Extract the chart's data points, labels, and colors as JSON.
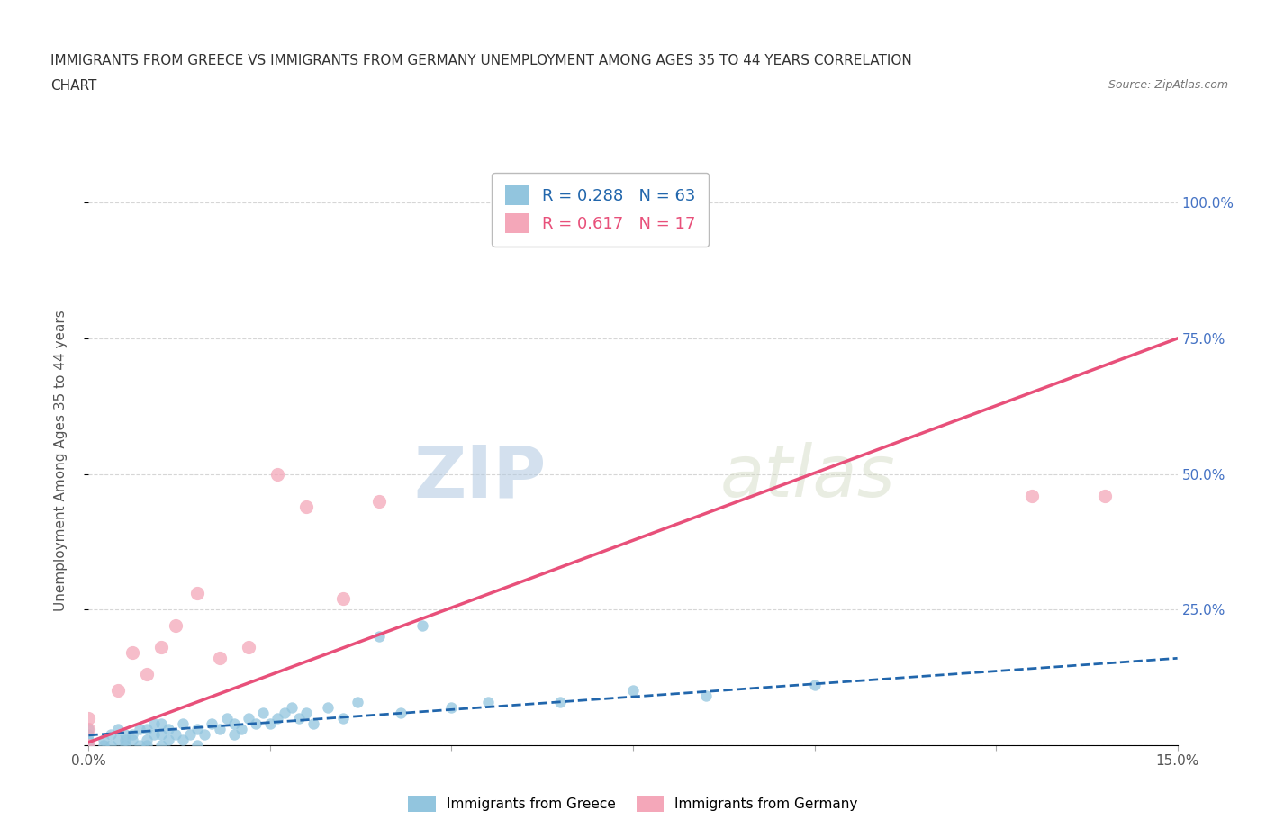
{
  "title_line1": "IMMIGRANTS FROM GREECE VS IMMIGRANTS FROM GERMANY UNEMPLOYMENT AMONG AGES 35 TO 44 YEARS CORRELATION",
  "title_line2": "CHART",
  "source_text": "Source: ZipAtlas.com",
  "ylabel": "Unemployment Among Ages 35 to 44 years",
  "xlim": [
    0.0,
    0.15
  ],
  "ylim": [
    0.0,
    1.05
  ],
  "ytick_positions": [
    0.0,
    0.25,
    0.5,
    0.75,
    1.0
  ],
  "ytick_labels": [
    "",
    "25.0%",
    "50.0%",
    "75.0%",
    "100.0%"
  ],
  "greece_R": 0.288,
  "greece_N": 63,
  "germany_R": 0.617,
  "germany_N": 17,
  "greece_color": "#92c5de",
  "germany_color": "#f4a7b9",
  "greece_line_color": "#2166ac",
  "germany_line_color": "#e8507a",
  "watermark_zip": "ZIP",
  "watermark_atlas": "atlas",
  "greece_scatter_x": [
    0.0,
    0.0,
    0.0,
    0.0,
    0.0,
    0.002,
    0.002,
    0.003,
    0.003,
    0.004,
    0.004,
    0.005,
    0.005,
    0.005,
    0.006,
    0.006,
    0.007,
    0.007,
    0.008,
    0.008,
    0.008,
    0.009,
    0.009,
    0.01,
    0.01,
    0.01,
    0.011,
    0.011,
    0.012,
    0.013,
    0.013,
    0.014,
    0.015,
    0.015,
    0.016,
    0.017,
    0.018,
    0.019,
    0.02,
    0.02,
    0.021,
    0.022,
    0.023,
    0.024,
    0.025,
    0.026,
    0.027,
    0.028,
    0.029,
    0.03,
    0.031,
    0.033,
    0.035,
    0.037,
    0.04,
    0.043,
    0.046,
    0.05,
    0.055,
    0.065,
    0.075,
    0.085,
    0.1
  ],
  "greece_scatter_y": [
    0.0,
    0.0,
    0.01,
    0.02,
    0.03,
    0.0,
    0.01,
    0.0,
    0.02,
    0.01,
    0.03,
    0.0,
    0.01,
    0.02,
    0.01,
    0.02,
    0.0,
    0.03,
    0.0,
    0.01,
    0.03,
    0.02,
    0.04,
    0.0,
    0.02,
    0.04,
    0.01,
    0.03,
    0.02,
    0.01,
    0.04,
    0.02,
    0.0,
    0.03,
    0.02,
    0.04,
    0.03,
    0.05,
    0.02,
    0.04,
    0.03,
    0.05,
    0.04,
    0.06,
    0.04,
    0.05,
    0.06,
    0.07,
    0.05,
    0.06,
    0.04,
    0.07,
    0.05,
    0.08,
    0.2,
    0.06,
    0.22,
    0.07,
    0.08,
    0.08,
    0.1,
    0.09,
    0.11
  ],
  "germany_scatter_x": [
    0.0,
    0.0,
    0.0,
    0.004,
    0.006,
    0.008,
    0.01,
    0.012,
    0.015,
    0.018,
    0.022,
    0.026,
    0.03,
    0.035,
    0.04,
    0.13,
    0.14
  ],
  "germany_scatter_y": [
    0.0,
    0.03,
    0.05,
    0.1,
    0.17,
    0.13,
    0.18,
    0.22,
    0.28,
    0.16,
    0.18,
    0.5,
    0.44,
    0.27,
    0.45,
    0.46,
    0.46
  ],
  "greece_trend_x": [
    0.0,
    0.15
  ],
  "greece_trend_y": [
    0.018,
    0.16
  ],
  "germany_trend_x": [
    0.0,
    0.15
  ],
  "germany_trend_y": [
    0.005,
    0.75
  ]
}
